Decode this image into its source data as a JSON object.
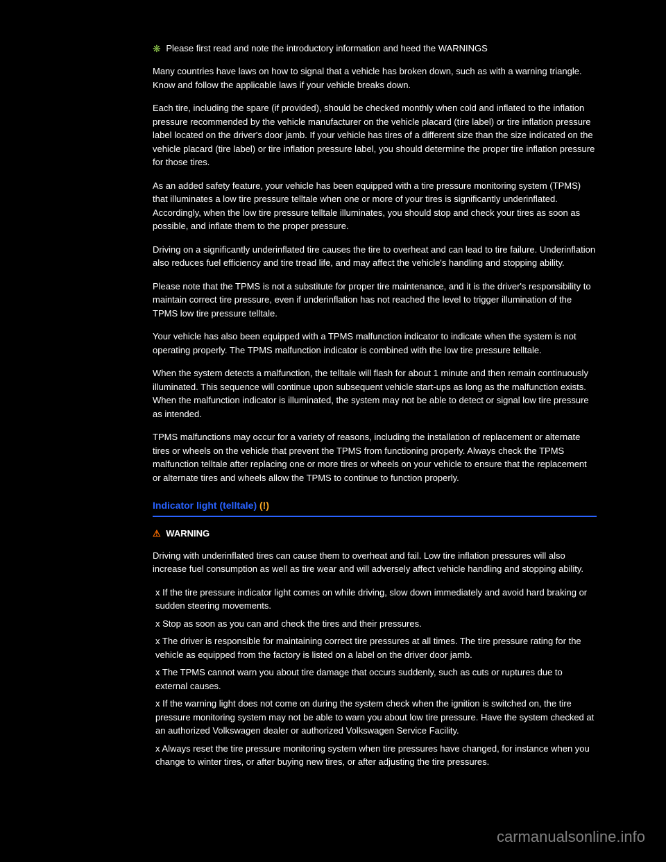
{
  "intro": {
    "link_text": "Please first read and note the introductory information and heed the WARNINGS"
  },
  "paragraphs": {
    "p1": "Many countries have laws on how to signal that a vehicle has broken down, such as with a warning triangle. Know and follow the applicable laws if your vehicle breaks down.",
    "p2": "Each tire, including the spare (if provided), should be checked monthly when cold and inflated to the inflation pressure recommended by the vehicle manufacturer on the vehicle placard (tire label) or tire inflation pressure label located on the driver's door jamb. If your vehicle has tires of a different size than the size indicated on the vehicle placard (tire label) or tire inflation pressure label, you should determine the proper tire inflation pressure for those tires.",
    "p3": "As an added safety feature, your vehicle has been equipped with a tire pressure monitoring system (TPMS) that illuminates a low tire pressure telltale when one or more of your tires is significantly underinflated. Accordingly, when the low tire pressure telltale illuminates, you should stop and check your tires as soon as possible, and inflate them to the proper pressure.",
    "p4": "Driving on a significantly underinflated tire causes the tire to overheat and can lead to tire failure. Underinflation also reduces fuel efficiency and tire tread life, and may affect the vehicle's handling and stopping ability.",
    "p5": "Please note that the TPMS is not a substitute for proper tire maintenance, and it is the driver's responsibility to maintain correct tire pressure, even if underinflation has not reached the level to trigger illumination of the TPMS low tire pressure telltale.",
    "p6": "Your vehicle has also been equipped with a TPMS malfunction indicator to indicate when the system is not operating properly. The TPMS malfunction indicator is combined with the low tire pressure telltale.",
    "p7": "When the system detects a malfunction, the telltale will flash for about 1 minute and then remain continuously illuminated. This sequence will continue upon subsequent vehicle start-ups as long as the malfunction exists. When the malfunction indicator is illuminated, the system may not be able to detect or signal low tire pressure as intended.",
    "p8": "TPMS malfunctions may occur for a variety of reasons, including the installation of replacement or alternate tires or wheels on the vehicle that prevent the TPMS from functioning properly. Always check the TPMS malfunction telltale after replacing one or more tires or wheels on your vehicle to ensure that the replacement or alternate tires and wheels allow the TPMS to continue to function properly."
  },
  "heading": {
    "text": "Indicator light (telltale) ",
    "icon": "(!)"
  },
  "warning": {
    "label": "WARNING",
    "intro": "Driving with underinflated tires can cause them to overheat and fail. Low tire inflation pressures will also increase fuel consumption as well as tire wear and will adversely affect vehicle handling and stopping ability.",
    "bullets": {
      "b1": "x If the tire pressure indicator light comes on while driving, slow down immediately and avoid hard braking or sudden steering movements.",
      "b2": "x Stop as soon as you can and check the tires and their pressures.",
      "b3": "x The driver is responsible for maintaining correct tire pressures at all times. The tire pressure rating for the vehicle as equipped from the factory is listed on a label on the driver door jamb.",
      "b4": "x The TPMS cannot warn you about tire damage that occurs suddenly, such as cuts or ruptures due to external causes.",
      "b5": "x If the warning light does not come on during the system check when the ignition is switched on, the tire pressure monitoring system may not be able to warn you about low tire pressure. Have the system checked at an authorized Volkswagen dealer or authorized Volkswagen Service Facility.",
      "b6": "x Always reset the tire pressure monitoring system when tire pressures have changed, for instance when you change to winter tires, or after buying new tires, or after adjusting the tire pressures."
    }
  },
  "watermark": "carmanualsonline.info"
}
